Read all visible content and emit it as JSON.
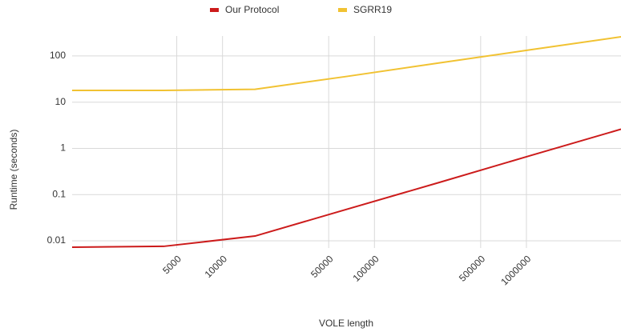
{
  "chart_data": {
    "type": "line",
    "xlabel": "VOLE length",
    "ylabel": "Runtime (seconds)",
    "x": [
      1024,
      4096,
      16384,
      65536,
      262144,
      1048576,
      4194304
    ],
    "series": [
      {
        "name": "Our Protocol",
        "color": "#cc1b1b",
        "values": [
          0.0073,
          0.0076,
          0.0127,
          0.048,
          0.18,
          0.69,
          2.6
        ]
      },
      {
        "name": "SGRR19",
        "color": "#f1c232",
        "values": [
          18,
          18,
          19,
          36,
          70,
          135,
          259
        ]
      }
    ],
    "xscale": "log",
    "yscale": "log",
    "xlim": [
      1024,
      4194304
    ],
    "xticks": [
      5000,
      10000,
      50000,
      100000,
      500000,
      1000000
    ],
    "ylim": [
      0.007,
      270
    ],
    "yticks": [
      0.01,
      0.1,
      1,
      10,
      100
    ],
    "grid": true,
    "legend": "top"
  }
}
